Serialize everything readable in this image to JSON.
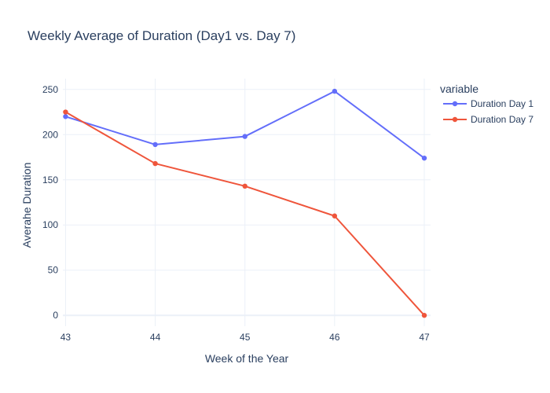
{
  "chart_data": {
    "type": "line",
    "title": "Weekly Average of Duration (Day1 vs. Day 7)",
    "xlabel": "Week of the Year",
    "ylabel": "Averahe Duration",
    "x": [
      43,
      44,
      45,
      46,
      47
    ],
    "xticks": [
      "43",
      "44",
      "45",
      "46",
      "47"
    ],
    "yticks": [
      0,
      50,
      100,
      150,
      200,
      250
    ],
    "xlim": [
      42.97,
      47.07
    ],
    "ylim": [
      -12,
      262
    ],
    "grid": true,
    "legend": {
      "title": "variable",
      "placement": "top-right"
    },
    "series": [
      {
        "name": "Duration Day 1",
        "color": "#636efa",
        "values": [
          220,
          189,
          198,
          248,
          174
        ]
      },
      {
        "name": "Duration Day 7",
        "color": "#ef553b",
        "values": [
          225,
          168,
          143,
          110,
          0
        ]
      }
    ]
  }
}
